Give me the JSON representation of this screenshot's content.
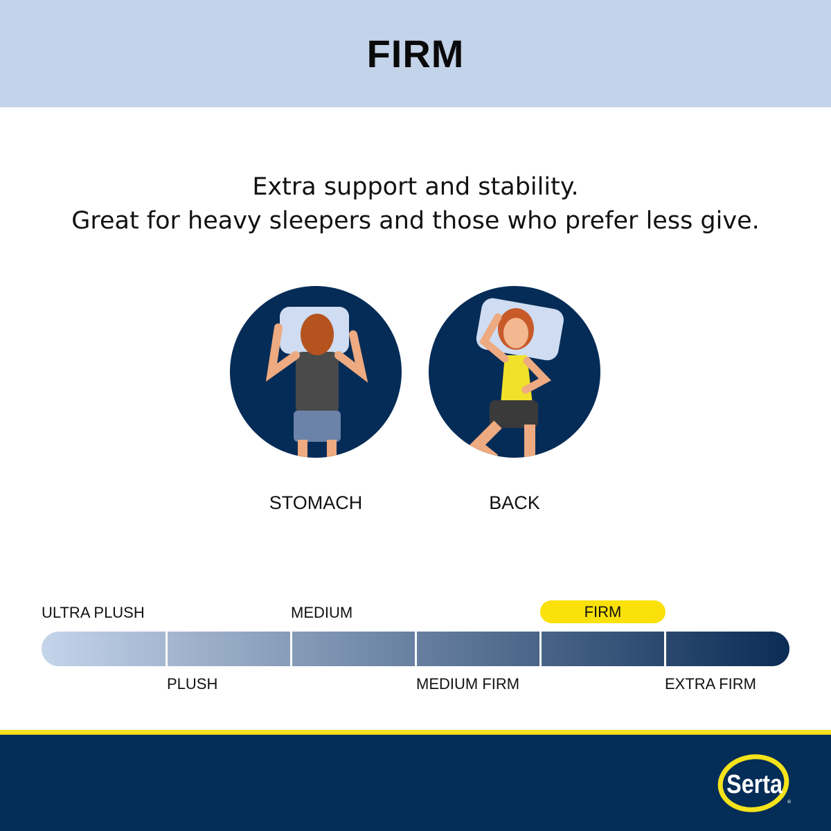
{
  "header": {
    "title": "FIRM"
  },
  "description": {
    "line1": "Extra support and stability.",
    "line2": "Great for heavy sleepers and those who prefer less give."
  },
  "positions": [
    {
      "label": "STOMACH",
      "icon": "stomach-sleeper-illustration"
    },
    {
      "label": "BACK",
      "icon": "back-sleeper-illustration"
    }
  ],
  "firmness_scale": {
    "levels": [
      "ULTRA PLUSH",
      "PLUSH",
      "MEDIUM",
      "MEDIUM FIRM",
      "FIRM",
      "EXTRA FIRM"
    ],
    "selected": "FIRM",
    "highlight_color": "#fbe10a"
  },
  "brand": {
    "logo_text": "Serta",
    "primary_color": "#042d57",
    "accent_color": "#f4e01d"
  }
}
